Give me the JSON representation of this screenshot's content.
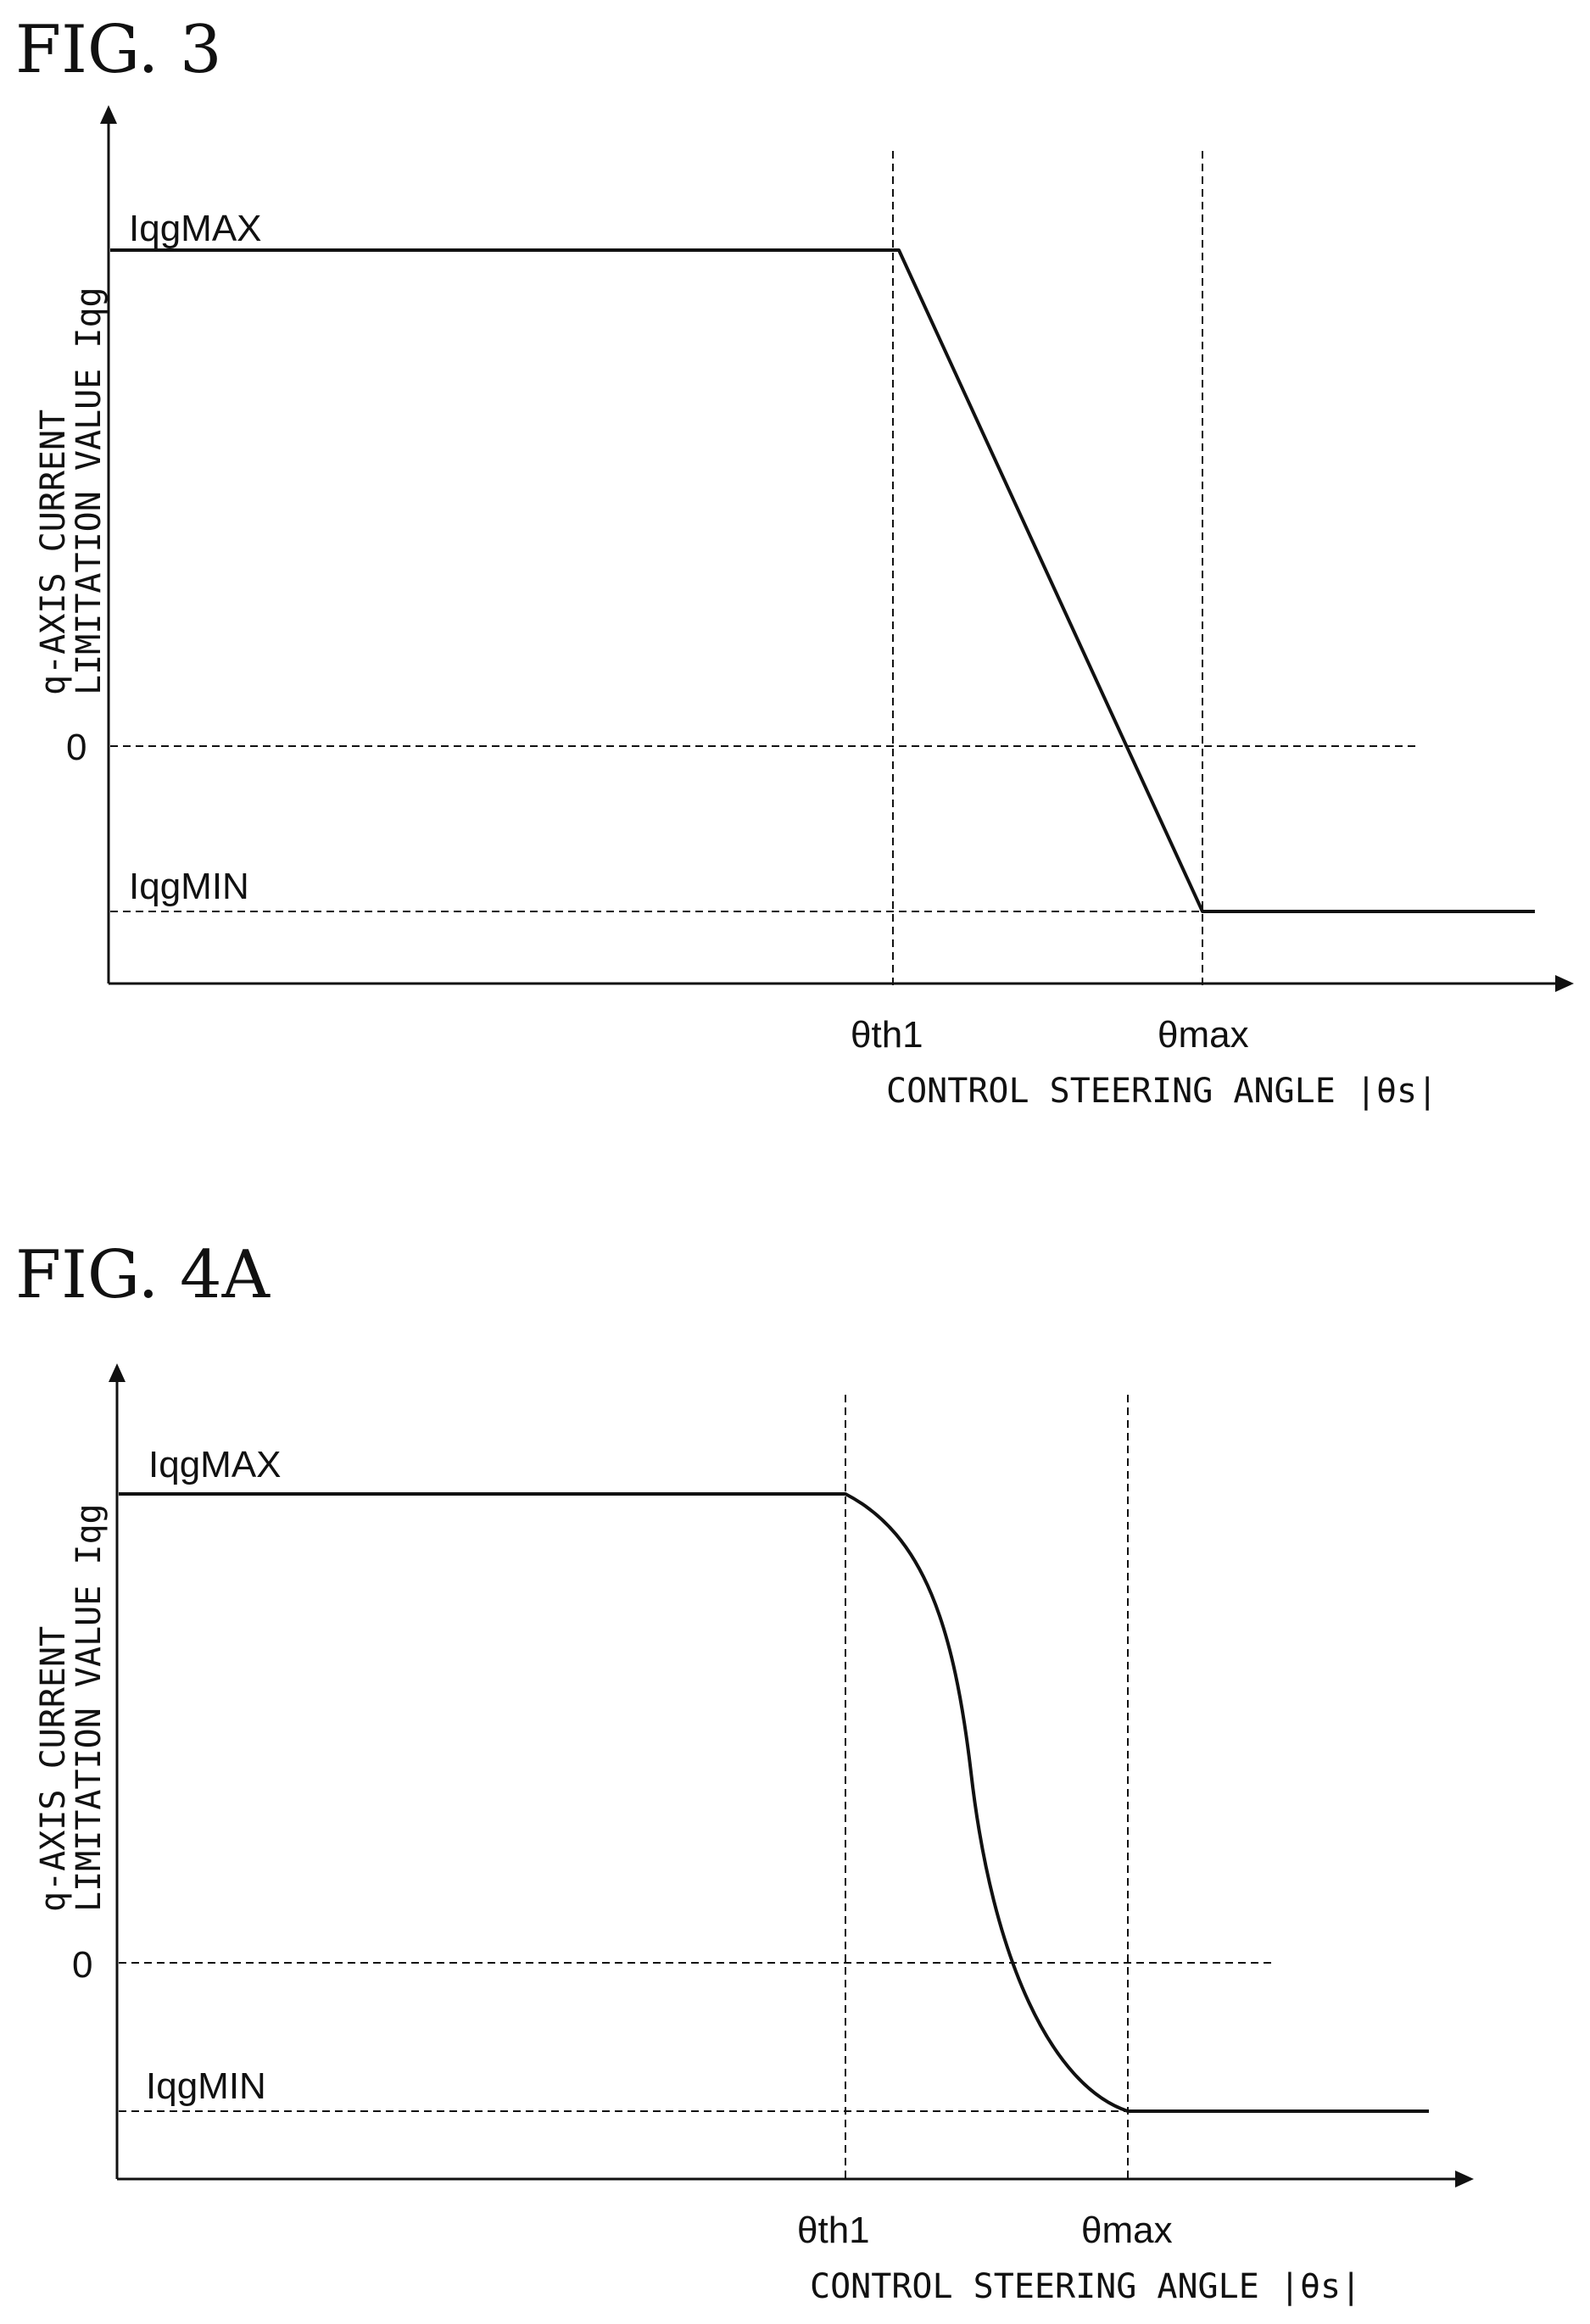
{
  "chart_data": [
    {
      "type": "line",
      "title": "FIG. 3",
      "ylabel_line1": "q-AXIS CURRENT",
      "ylabel_line2": "LIMITATION VALUE Iqg",
      "xlabel": "CONTROL STEERING ANGLE |θs|",
      "y_tick_labels": {
        "max": "IqgMAX",
        "zero": "0",
        "min": "IqgMIN"
      },
      "x_tick_labels": {
        "th1": "θth1",
        "max": "θmax"
      },
      "curve_shape": "linear",
      "series": [
        {
          "points": [
            [
              "0",
              "IqgMAX"
            ],
            [
              "θth1",
              "IqgMAX"
            ],
            [
              "θmax",
              "IqgMIN"
            ],
            [
              "end",
              "IqgMIN"
            ]
          ]
        }
      ],
      "grid": false
    },
    {
      "type": "line",
      "title": "FIG. 4A",
      "ylabel_line1": "q-AXIS CURRENT",
      "ylabel_line2": "LIMITATION VALUE Iqg",
      "xlabel": "CONTROL STEERING ANGLE |θs|",
      "y_tick_labels": {
        "max": "IqgMAX",
        "zero": "0",
        "min": "IqgMIN"
      },
      "x_tick_labels": {
        "th1": "θth1",
        "max": "θmax"
      },
      "curve_shape": "s-curve",
      "series": [
        {
          "points": [
            [
              "0",
              "IqgMAX"
            ],
            [
              "θth1",
              "IqgMAX"
            ],
            [
              "θmax",
              "IqgMIN"
            ],
            [
              "end",
              "IqgMIN"
            ]
          ]
        }
      ],
      "grid": false
    }
  ]
}
